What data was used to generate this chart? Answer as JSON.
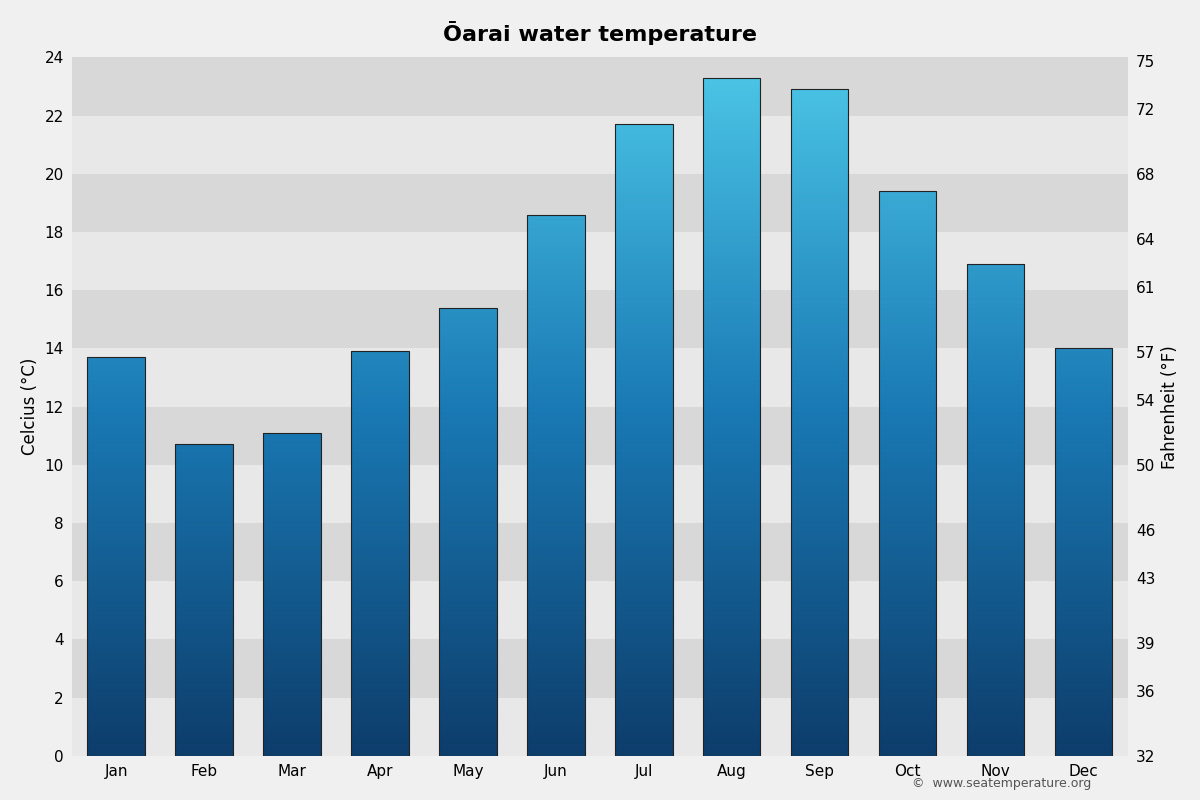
{
  "title": "Ōarai water temperature",
  "months": [
    "Jan",
    "Feb",
    "Mar",
    "Apr",
    "May",
    "Jun",
    "Jul",
    "Aug",
    "Sep",
    "Oct",
    "Nov",
    "Dec"
  ],
  "values_c": [
    13.7,
    10.7,
    11.1,
    13.9,
    15.4,
    18.6,
    21.7,
    23.3,
    22.9,
    19.4,
    16.9,
    14.0
  ],
  "ylabel_left": "Celcius (°C)",
  "ylabel_right": "Fahrenheit (°F)",
  "ylim_c": [
    0,
    24
  ],
  "yticks_c": [
    0,
    2,
    4,
    6,
    8,
    10,
    12,
    14,
    16,
    18,
    20,
    22,
    24
  ],
  "yticks_f": [
    32,
    36,
    39,
    43,
    46,
    50,
    54,
    57,
    61,
    64,
    68,
    72,
    75
  ],
  "color_bottom": "#0d3d6b",
  "color_mid": "#1a7ab5",
  "color_top": "#4dc8e8",
  "background_color": "#f0f0f0",
  "band_light": "#e8e8e8",
  "band_dark": "#d8d8d8",
  "bar_edge_color": "#222222",
  "watermark": "©  www.seatemperature.org",
  "title_fontsize": 16,
  "axis_label_fontsize": 12,
  "tick_fontsize": 11
}
